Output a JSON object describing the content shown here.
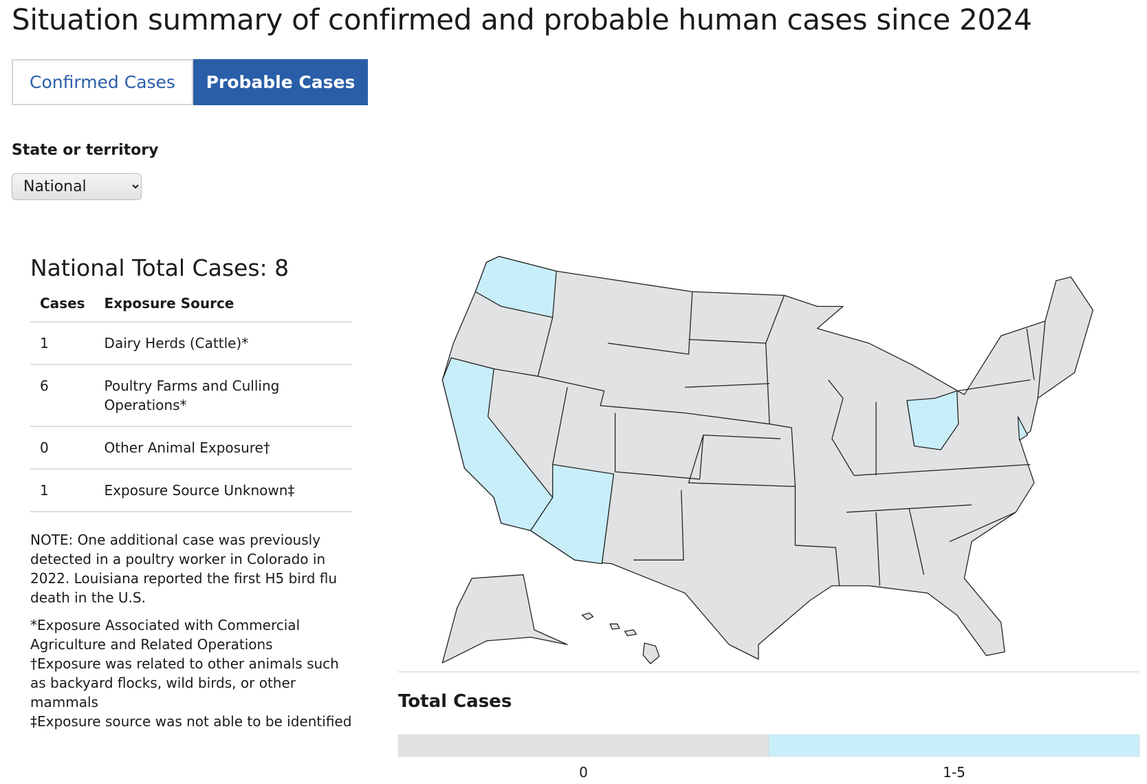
{
  "header": {
    "title": "Situation summary of confirmed and probable human cases since 2024"
  },
  "tabs": [
    {
      "label": "Confirmed Cases",
      "active": false
    },
    {
      "label": "Probable Cases",
      "active": true
    }
  ],
  "filter": {
    "label": "State or territory",
    "value": "National"
  },
  "summary": {
    "heading": "National Total Cases: 8",
    "table": {
      "columns": [
        "Cases",
        "Exposure Source"
      ],
      "rows": [
        [
          "1",
          "Dairy Herds (Cattle)*"
        ],
        [
          "6",
          "Poultry Farms and Culling Operations*"
        ],
        [
          "0",
          "Other Animal Exposure†"
        ],
        [
          "1",
          "Exposure Source Unknown‡"
        ]
      ]
    },
    "note": "NOTE: One additional case was previously detected in a poultry worker in Colorado in 2022. Louisiana reported the first H5 bird flu death in the U.S.",
    "footnotes": [
      "*Exposure Associated with Commercial Agriculture and Related Operations",
      "†Exposure was related to other animals such as backyard flocks, wild birds, or other mammals",
      "‡Exposure source was not able to be identified"
    ]
  },
  "legend": {
    "title": "Total Cases",
    "items": [
      {
        "label": "0",
        "color": "#e1e2e4"
      },
      {
        "label": "1-5",
        "color": "#c8eef9"
      }
    ]
  }
}
